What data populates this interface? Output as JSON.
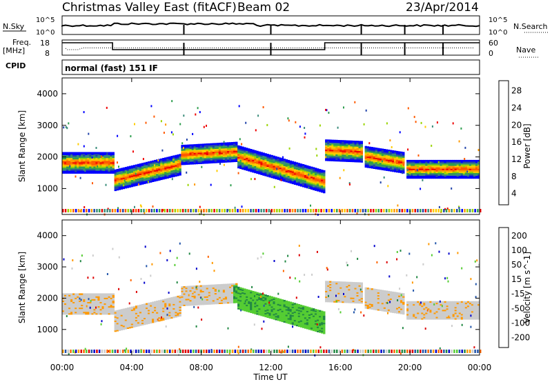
{
  "header": {
    "title": "Christmas Valley East (fitACF)",
    "beam": "Beam 02",
    "date": "23/Apr/2014"
  },
  "top_panel": {
    "left_label": "N.Sky",
    "left_ticks": [
      "10^5",
      "10^0"
    ],
    "right_label": "N.Search",
    "right_ticks": [
      "10^5",
      "10^0"
    ]
  },
  "freq_panel": {
    "left_label_1": "Freq.",
    "left_label_2": "[MHz]",
    "left_ticks": [
      "18",
      "8"
    ],
    "right_label": "Nave",
    "right_ticks": [
      "60",
      "0"
    ]
  },
  "cpid": {
    "label": "CPID",
    "value": "normal (fast) 151 IF"
  },
  "x_axis": {
    "label": "Time UT",
    "ticks": [
      "00:00",
      "04:00",
      "08:00",
      "12:00",
      "16:00",
      "20:00",
      "00:00"
    ]
  },
  "chart_data": [
    {
      "type": "heatmap",
      "name": "power",
      "ylabel": "Slant Range [km]",
      "yticks": [
        "4000",
        "3000",
        "2000",
        "1000"
      ],
      "ylim": [
        180,
        4500
      ],
      "xlim": [
        0,
        24
      ],
      "colorbar": {
        "label": "Power [dB]",
        "ticks": [
          "28",
          "24",
          "20",
          "16",
          "12",
          "8",
          "4"
        ],
        "colors": [
          "#ee0000",
          "#ff5a00",
          "#ff9a00",
          "#ffcc00",
          "#9ad400",
          "#2f9e4f",
          "#3a8c7a",
          "#2244aa",
          "#0000ff"
        ]
      },
      "bands": [
        {
          "t0": 0.0,
          "t1": 2.9,
          "center": [
            1800,
            1800
          ],
          "width": 320
        },
        {
          "t0": 3.0,
          "t1": 6.8,
          "center": [
            1250,
            1750
          ],
          "width": 320
        },
        {
          "t0": 6.8,
          "t1": 10.0,
          "center": [
            2050,
            2150
          ],
          "width": 300
        },
        {
          "t0": 10.0,
          "t1": 15.0,
          "center": [
            2000,
            1200
          ],
          "width": 340
        },
        {
          "t0": 15.1,
          "t1": 17.2,
          "center": [
            2200,
            2150
          ],
          "width": 320
        },
        {
          "t0": 17.3,
          "t1": 19.6,
          "center": [
            2000,
            1800
          ],
          "width": 320
        },
        {
          "t0": 19.7,
          "t1": 24.0,
          "center": [
            1600,
            1600
          ],
          "width": 280
        }
      ]
    },
    {
      "type": "heatmap",
      "name": "velocity",
      "ylabel": "Slant Range [km]",
      "yticks": [
        "4000",
        "3000",
        "2000",
        "1000"
      ],
      "ylim": [
        180,
        4500
      ],
      "xlim": [
        0,
        24
      ],
      "colorbar": {
        "label": "Velocity [m s^-1]",
        "ticks": [
          "200",
          "100",
          "50",
          "15",
          "-15",
          "-50",
          "-100",
          "-200"
        ],
        "colors": [
          "#0000cc",
          "#2255aa",
          "#228844",
          "#55cc33",
          "#cccccc",
          "#ff9900",
          "#ff6600",
          "#dd0000"
        ]
      }
    }
  ]
}
